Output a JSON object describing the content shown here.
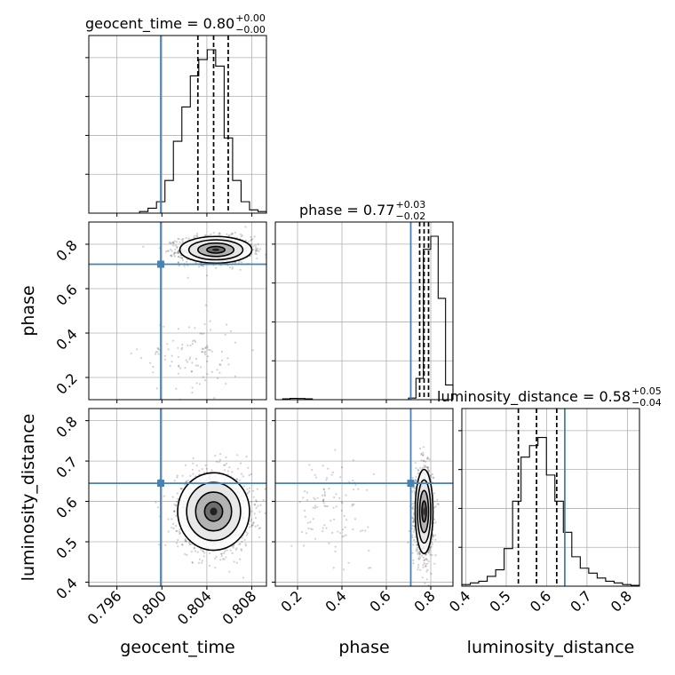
{
  "chart_data": {
    "type": "corner",
    "grid": true,
    "parameters": [
      "geocent_time",
      "phase",
      "luminosity_distance"
    ],
    "truth_color": "#4682b4",
    "truths": {
      "geocent_time": 0.7999,
      "phase": 0.71,
      "luminosity_distance": 0.645
    },
    "ranges": {
      "geocent_time": [
        0.7935,
        0.8093
      ],
      "phase": [
        0.1,
        0.9
      ],
      "luminosity_distance": [
        0.39,
        0.83
      ]
    },
    "ticks": {
      "geocent_time": {
        "values": [
          0.796,
          0.8,
          0.804,
          0.808
        ],
        "labels": [
          "0.796",
          "0.800",
          "0.804",
          "0.808"
        ]
      },
      "phase": {
        "values": [
          0.2,
          0.4,
          0.6,
          0.8
        ],
        "labels": [
          "0.2",
          "0.4",
          "0.6",
          "0.8"
        ]
      },
      "luminosity_distance": {
        "values": [
          0.4,
          0.5,
          0.6,
          0.7,
          0.8
        ],
        "labels": [
          "0.4",
          "0.5",
          "0.6",
          "0.7",
          "0.8"
        ]
      }
    },
    "axis_labels": {
      "x": [
        "geocent_time",
        "phase",
        "luminosity_distance"
      ],
      "y": [
        "phase",
        "luminosity_distance"
      ]
    },
    "titles": [
      {
        "param": "geocent_time",
        "prefix": "geocent_time = 0.80",
        "plus": "+0.00",
        "minus": "−0.00"
      },
      {
        "param": "phase",
        "prefix": "phase = 0.77",
        "plus": "+0.03",
        "minus": "−0.02"
      },
      {
        "param": "luminosity_distance",
        "prefix": "luminosity_distance = 0.58",
        "plus": "+0.05",
        "minus": "−0.04"
      }
    ],
    "quantiles": {
      "geocent_time": [
        0.8032,
        0.8046,
        0.8059
      ],
      "phase": [
        0.75,
        0.77,
        0.79
      ],
      "luminosity_distance": [
        0.53,
        0.575,
        0.625
      ]
    },
    "histograms": {
      "geocent_time": [
        0,
        0,
        0,
        0,
        0,
        0,
        0.01,
        0.03,
        0.07,
        0.2,
        0.44,
        0.65,
        0.84,
        0.94,
        1.0,
        0.9,
        0.46,
        0.2,
        0.07,
        0.02,
        0.01
      ],
      "phase": [
        0,
        0.005,
        0.008,
        0.007,
        0.005,
        0,
        0,
        0,
        0,
        0,
        0,
        0,
        0,
        0,
        0,
        0,
        0,
        0,
        0.01,
        0.13,
        0.92,
        1.0,
        0.62,
        0.09
      ],
      "luminosity_distance": [
        0.01,
        0.02,
        0.03,
        0.06,
        0.1,
        0.23,
        0.52,
        0.79,
        0.86,
        0.91,
        0.68,
        0.52,
        0.33,
        0.18,
        0.11,
        0.08,
        0.05,
        0.03,
        0.02,
        0.01,
        0.005
      ]
    },
    "density": {
      "phase_vs_geocent_time": {
        "components": [
          {
            "center": [
              0.8048,
              0.775
            ],
            "sigma": [
              0.0016,
              0.03
            ],
            "weight": 0.93
          },
          {
            "center": [
              0.8026,
              0.3
            ],
            "sigma": [
              0.0022,
              0.085
            ],
            "weight": 0.07
          }
        ]
      },
      "luminosity_distance_vs_geocent_time": {
        "components": [
          {
            "center": [
              0.8046,
              0.575
            ],
            "sigma": [
              0.0016,
              0.048
            ],
            "weight": 1.0
          }
        ]
      },
      "luminosity_distance_vs_phase": {
        "components": [
          {
            "center": [
              0.77,
              0.575
            ],
            "sigma": [
              0.02,
              0.052
            ],
            "weight": 0.93
          },
          {
            "center": [
              0.35,
              0.585
            ],
            "sigma": [
              0.09,
              0.055
            ],
            "weight": 0.07
          }
        ]
      }
    }
  }
}
